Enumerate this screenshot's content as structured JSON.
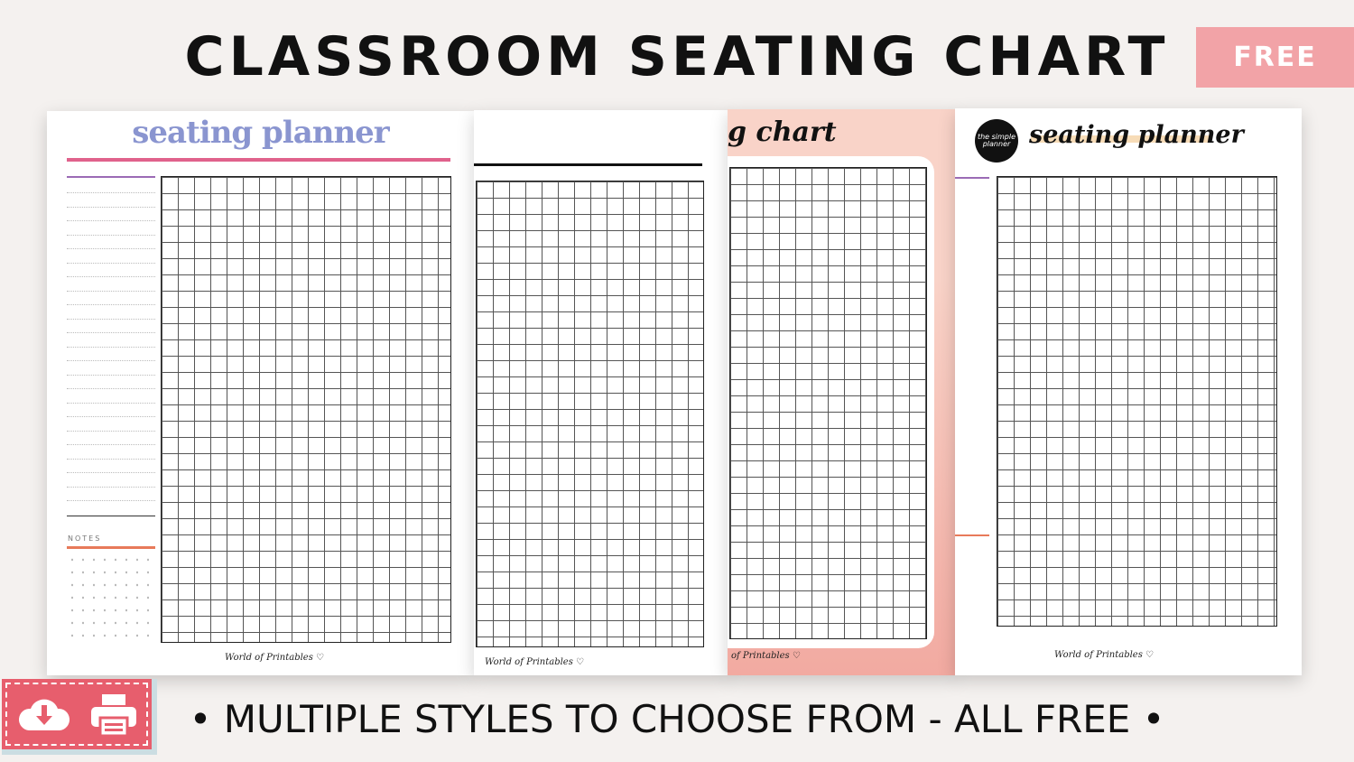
{
  "header": {
    "title": "CLASSROOM SEATING CHART",
    "badge": "FREE"
  },
  "sheets": [
    {
      "title": "seating planner",
      "notes_label": "NOTES",
      "signature": "World of Printables ♡"
    },
    {
      "signature": "World of Printables ♡"
    },
    {
      "title": "g chart",
      "signature": "of Printables ♡"
    },
    {
      "logo_text": "the simple planner",
      "title": "seating planner",
      "signature": "World of Printables ♡"
    }
  ],
  "footer": {
    "tagline": "• MULTIPLE STYLES TO CHOOSE FROM - ALL FREE •"
  },
  "badge_icons": [
    "cloud-download-icon",
    "printer-icon"
  ],
  "colors": {
    "accent_pink": "#e75e6d",
    "free_badge": "#f2a3a7",
    "sheet3_bg": "#f9d3c8"
  }
}
